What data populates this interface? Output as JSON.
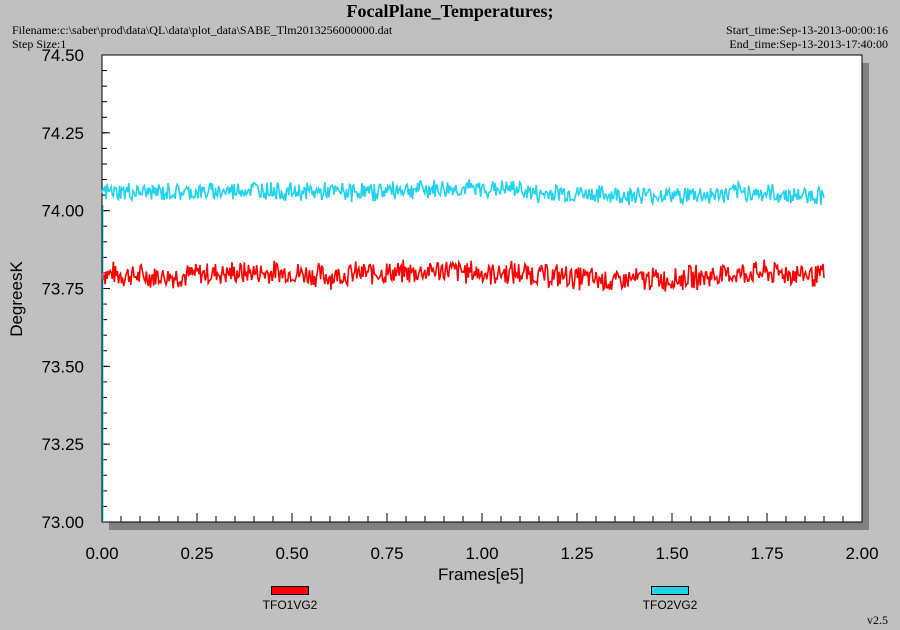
{
  "header": {
    "title": "FocalPlane_Temperatures;",
    "filename": "Filename:c:\\saber\\prod\\data\\QL\\data\\plot_data\\SABE_Tlm2013256000000.dat",
    "step_size": "Step Size:1",
    "start_time": "Start_time:Sep-13-2013-00:00:16",
    "end_time": "End_time:Sep-13-2013-17:40:00"
  },
  "version": "v2.5",
  "colors": {
    "background": "#c0c0c0",
    "plot_area": "#ffffff",
    "TFO1VG2": "#ff0000",
    "TFO2VG2": "#22d3ee"
  },
  "chart_data": {
    "type": "line",
    "title": "FocalPlane_Temperatures;",
    "xlabel": "Frames[e5]",
    "ylabel": "DegreesK",
    "xlim": [
      0.0,
      2.0
    ],
    "ylim": [
      73.0,
      74.5
    ],
    "x_ticks": [
      "0.00",
      "0.25",
      "0.50",
      "0.75",
      "1.00",
      "1.25",
      "1.50",
      "1.75",
      "2.00"
    ],
    "y_ticks": [
      "73.00",
      "73.25",
      "73.50",
      "73.75",
      "74.00",
      "74.25",
      "74.50"
    ],
    "grid": false,
    "legend_position": "bottom",
    "series": [
      {
        "name": "TFO1VG2",
        "color": "#ff0000",
        "x": [
          0.0,
          0.1,
          0.2,
          0.3,
          0.4,
          0.5,
          0.6,
          0.7,
          0.8,
          0.9,
          1.0,
          1.1,
          1.2,
          1.3,
          1.35,
          1.4,
          1.5,
          1.6,
          1.7,
          1.8,
          1.9
        ],
        "y": [
          73.8,
          73.79,
          73.79,
          73.8,
          73.8,
          73.8,
          73.79,
          73.8,
          73.8,
          73.81,
          73.8,
          73.8,
          73.79,
          73.78,
          73.77,
          73.78,
          73.78,
          73.79,
          73.8,
          73.8,
          73.79
        ],
        "band": 0.045
      },
      {
        "name": "TFO2VG2",
        "color": "#22d3ee",
        "x": [
          0.0,
          0.1,
          0.2,
          0.3,
          0.4,
          0.5,
          0.6,
          0.7,
          0.8,
          0.9,
          1.0,
          1.1,
          1.15,
          1.2,
          1.3,
          1.4,
          1.5,
          1.6,
          1.7,
          1.8,
          1.9
        ],
        "y": [
          74.06,
          74.06,
          74.06,
          74.06,
          74.07,
          74.06,
          74.06,
          74.06,
          74.07,
          74.07,
          74.07,
          74.07,
          74.05,
          74.06,
          74.05,
          74.05,
          74.05,
          74.05,
          74.06,
          74.05,
          74.05
        ],
        "band": 0.035
      }
    ]
  }
}
